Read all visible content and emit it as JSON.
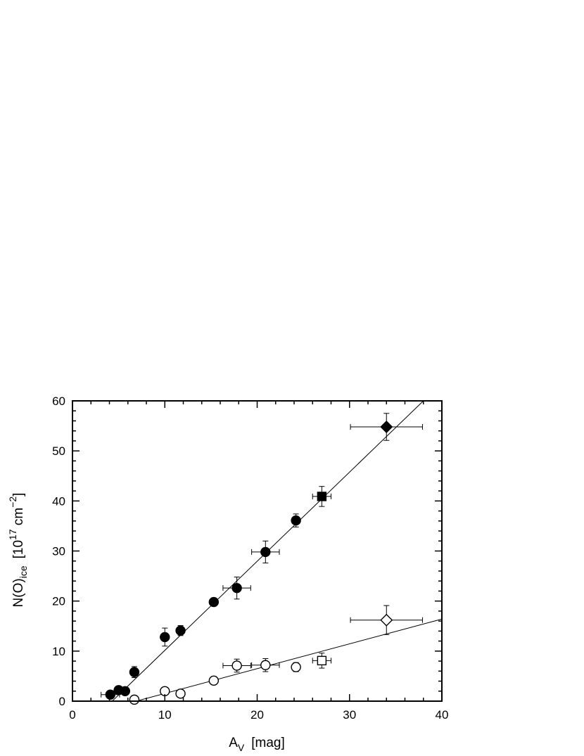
{
  "chart_data": {
    "type": "scatter",
    "xlabel": {
      "main": "A",
      "sub": "V",
      "unit": "[mag]"
    },
    "ylabel": {
      "main": "N(O)",
      "sub": "ice",
      "unit_open": "[10",
      "exp1": "17",
      "unit_mid": " cm",
      "exp2": "−2",
      "unit_close": "]"
    },
    "xlim": [
      0,
      40
    ],
    "ylim": [
      0,
      60
    ],
    "xticks": [
      "0",
      "10",
      "20",
      "30",
      "40"
    ],
    "yticks": [
      "0",
      "10",
      "20",
      "30",
      "40",
      "50",
      "60"
    ],
    "grid": false,
    "legend": "none",
    "series": [
      {
        "marker": "circle",
        "filled": true,
        "points": [
          {
            "x": 4.1,
            "y": 1.3,
            "xerr": 1.0,
            "yerr": 0.5
          },
          {
            "x": 5.0,
            "y": 2.2,
            "yerr": 0.5
          },
          {
            "x": 5.7,
            "y": 2.0,
            "yerr": 0.5
          },
          {
            "x": 6.7,
            "y": 5.8,
            "yerr": 1.1
          },
          {
            "x": 10.0,
            "y": 12.8,
            "yerr": 1.8
          },
          {
            "x": 11.7,
            "y": 14.1,
            "yerr": 1.0
          },
          {
            "x": 15.3,
            "y": 19.8,
            "yerr": 0.8
          },
          {
            "x": 17.8,
            "y": 22.6,
            "xerr": 1.5,
            "yerr": 2.2
          },
          {
            "x": 20.9,
            "y": 29.8,
            "xerr": 1.5,
            "yerr": 2.2
          },
          {
            "x": 24.2,
            "y": 36.1,
            "yerr": 1.3
          }
        ]
      },
      {
        "marker": "square",
        "filled": true,
        "points": [
          {
            "x": 27.0,
            "y": 40.9,
            "xerr": 1.0,
            "yerr": 2.0
          }
        ]
      },
      {
        "marker": "diamond",
        "filled": true,
        "points": [
          {
            "x": 34.0,
            "y": 54.8,
            "xerr": 3.9,
            "yerr": 2.7
          }
        ]
      },
      {
        "marker": "circle",
        "filled": false,
        "points": [
          {
            "x": 6.7,
            "y": 0.3,
            "yerr": 0.3
          },
          {
            "x": 10.0,
            "y": 2.0,
            "yerr": 0.6
          },
          {
            "x": 11.7,
            "y": 1.5,
            "yerr": 0.5
          },
          {
            "x": 15.3,
            "y": 4.1,
            "yerr": 0.8
          },
          {
            "x": 17.8,
            "y": 7.1,
            "xerr": 1.5,
            "yerr": 1.3
          },
          {
            "x": 20.9,
            "y": 7.2,
            "xerr": 1.5,
            "yerr": 1.3
          },
          {
            "x": 24.2,
            "y": 6.8,
            "yerr": 0.9
          }
        ]
      },
      {
        "marker": "square",
        "filled": false,
        "points": [
          {
            "x": 27.0,
            "y": 8.1,
            "xerr": 1.0,
            "yerr": 1.5
          }
        ]
      },
      {
        "marker": "diamond",
        "filled": false,
        "points": [
          {
            "x": 34.0,
            "y": 16.2,
            "xerr": 3.9,
            "yerr": 2.9
          }
        ]
      }
    ],
    "fit_lines": [
      {
        "x": [
          4.3,
          38.0
        ],
        "y": [
          0.0,
          60.0
        ]
      },
      {
        "x": [
          6.9,
          40.0
        ],
        "y": [
          0.0,
          16.4
        ]
      }
    ]
  }
}
